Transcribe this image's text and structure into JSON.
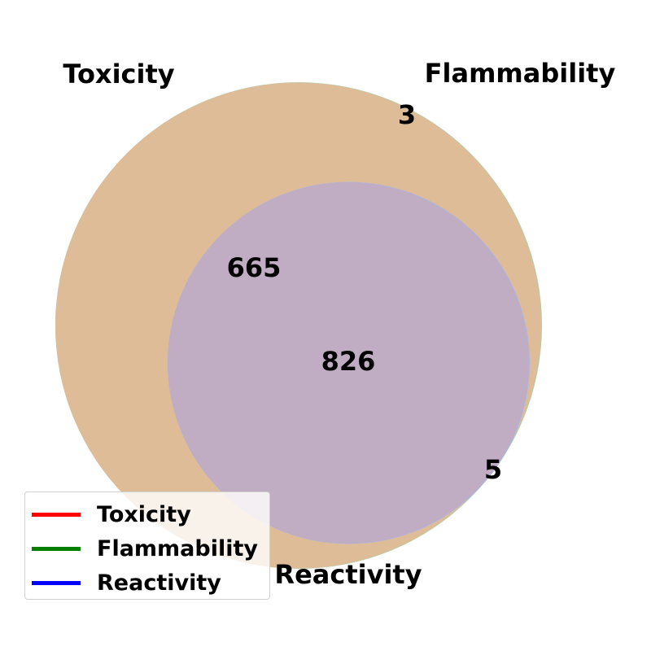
{
  "sets": [
    {
      "name": "Toxicity",
      "color": "#ff0000",
      "legend_color": "#ff0000"
    },
    {
      "name": "Flammability",
      "color": "#008000",
      "legend_color": "#008000"
    },
    {
      "name": "Reactivity",
      "color": "#0000ff",
      "legend_color": "#0000ff"
    }
  ],
  "region_fills": {
    "toxicity_flammability": "#dfbc98",
    "all_three": "#c0adc3"
  },
  "counts": {
    "flammability_only": "3",
    "toxicity_and_flammability": "665",
    "all_three": "826",
    "flammability_and_reactivity": "5"
  },
  "legend": {
    "items": [
      {
        "label": "Toxicity",
        "color": "#ff0000"
      },
      {
        "label": "Flammability",
        "color": "#008000"
      },
      {
        "label": "Reactivity",
        "color": "#0000ff"
      }
    ]
  }
}
